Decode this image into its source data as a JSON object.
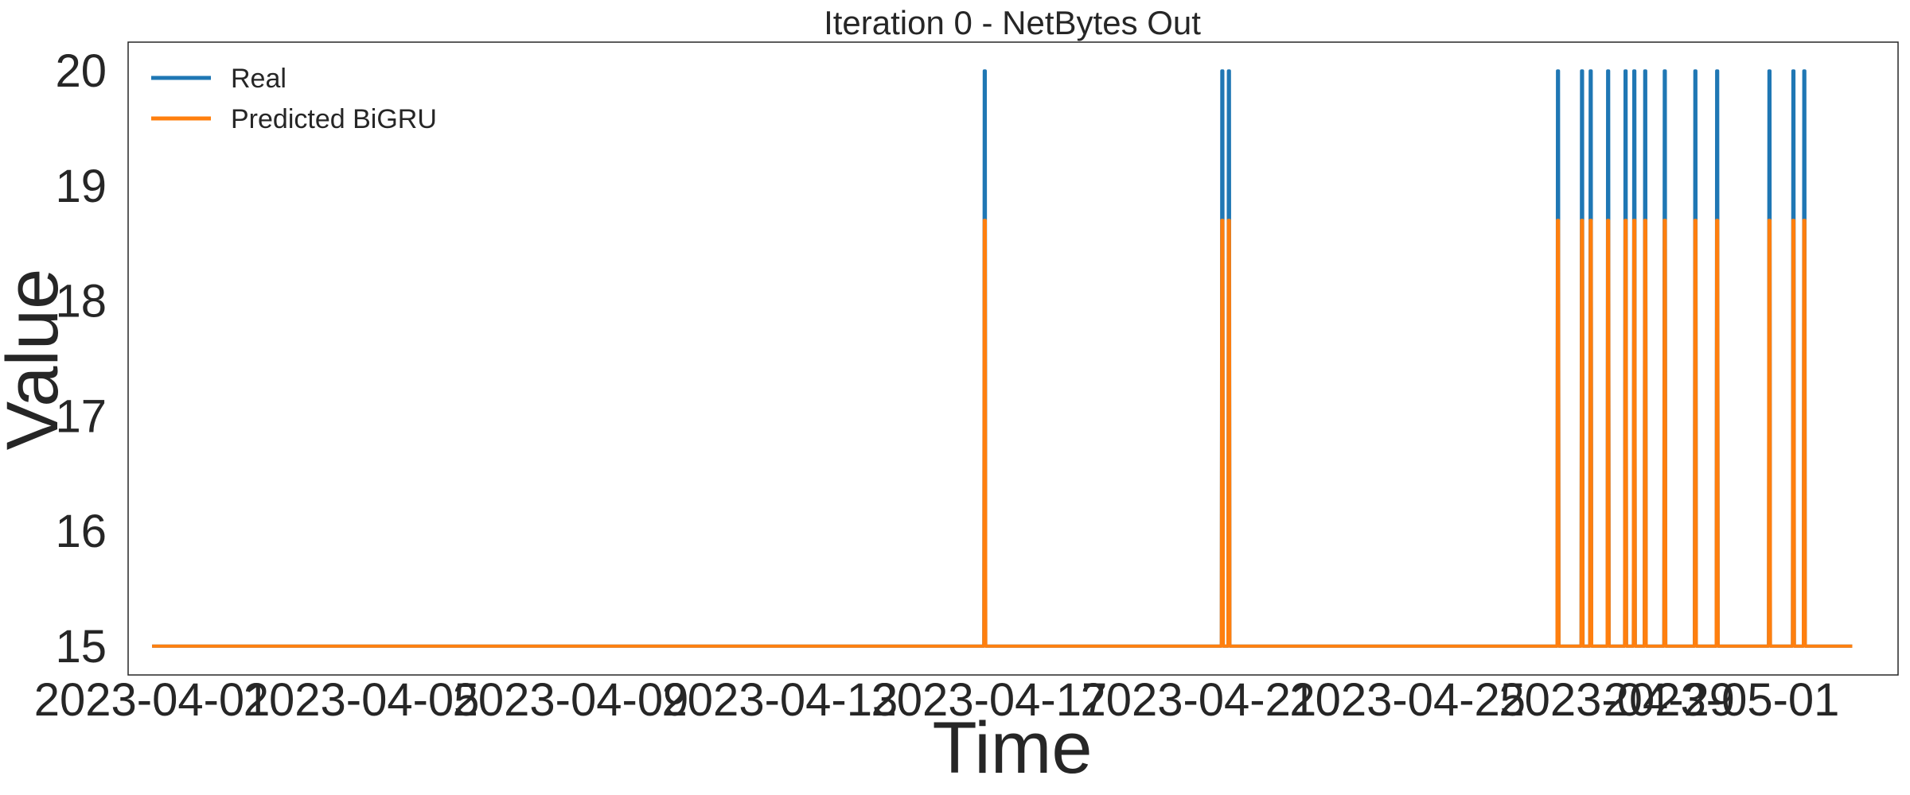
{
  "chart_data": {
    "type": "line",
    "title": "Iteration 0 - NetBytes Out",
    "xlabel": "Time",
    "ylabel": "Value",
    "xlim": [
      "2023-03-31T13:00",
      "2023-05-04T09:00"
    ],
    "ylim": [
      14.75,
      20.25
    ],
    "xticks": [
      "2023-04-01",
      "2023-04-05",
      "2023-04-09",
      "2023-04-13",
      "2023-04-17",
      "2023-04-21",
      "2023-04-25",
      "2023-04-29",
      "2023-05-01"
    ],
    "yticks": [
      "15",
      "16",
      "17",
      "18",
      "19",
      "20"
    ],
    "legend_position": "upper-left",
    "grid": false,
    "x_start": "2023-04-01T00:00",
    "x_end": "2023-05-03T12:00",
    "baseline": 15,
    "series": [
      {
        "name": "Real",
        "color": "#1f77b4",
        "spike_value": 20,
        "spikes": [
          "2023-04-16T22:00",
          "2023-04-21T11:00",
          "2023-04-21T14:00",
          "2023-04-27T21:00",
          "2023-04-28T08:00",
          "2023-04-28T12:00",
          "2023-04-28T20:00",
          "2023-04-29T04:00",
          "2023-04-29T08:00",
          "2023-04-29T13:00",
          "2023-04-29T22:00",
          "2023-04-30T12:00",
          "2023-04-30T22:00",
          "2023-05-01T22:00",
          "2023-05-02T09:00",
          "2023-05-02T14:00"
        ]
      },
      {
        "name": "Predicted BiGRU",
        "color": "#ff7f0e",
        "spike_value": 18.7,
        "spikes": [
          "2023-04-16T22:00",
          "2023-04-21T11:00",
          "2023-04-21T14:00",
          "2023-04-27T21:00",
          "2023-04-28T08:00",
          "2023-04-28T12:00",
          "2023-04-28T20:00",
          "2023-04-29T04:00",
          "2023-04-29T08:00",
          "2023-04-29T13:00",
          "2023-04-29T22:00",
          "2023-04-30T12:00",
          "2023-04-30T22:00",
          "2023-05-01T22:00",
          "2023-05-02T09:00",
          "2023-05-02T14:00"
        ]
      }
    ]
  }
}
